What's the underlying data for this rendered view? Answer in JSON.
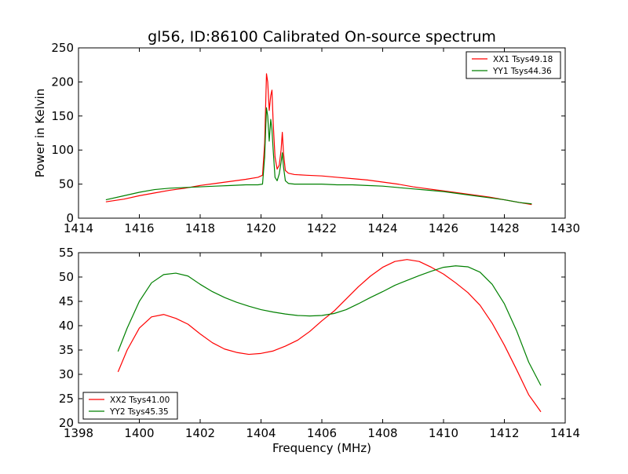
{
  "chart_data": [
    {
      "type": "line",
      "title": "gl56, ID:86100 Calibrated On-source spectrum",
      "xlabel": "",
      "ylabel": "Power in Kelvin",
      "xlim": [
        1414,
        1430
      ],
      "ylim": [
        0,
        250
      ],
      "xticks": [
        "1414",
        "1416",
        "1418",
        "1420",
        "1422",
        "1424",
        "1426",
        "1428",
        "1430"
      ],
      "yticks": [
        "0",
        "50",
        "100",
        "150",
        "200",
        "250"
      ],
      "grid": false,
      "legend_position": "top-right",
      "series": [
        {
          "name": "XX1 Tsys49.18",
          "color": "#ff0000",
          "x": [
            1414.9,
            1415.5,
            1416.0,
            1416.5,
            1417.0,
            1417.5,
            1418.0,
            1418.5,
            1419.0,
            1419.5,
            1419.9,
            1420.05,
            1420.12,
            1420.18,
            1420.22,
            1420.27,
            1420.32,
            1420.36,
            1420.4,
            1420.46,
            1420.53,
            1420.6,
            1420.66,
            1420.7,
            1420.74,
            1420.8,
            1420.9,
            1421.1,
            1421.5,
            1422.0,
            1422.5,
            1423.0,
            1423.5,
            1424.0,
            1424.5,
            1425.0,
            1425.5,
            1426.0,
            1426.5,
            1427.0,
            1427.5,
            1428.0,
            1428.5,
            1428.9
          ],
          "y": [
            24,
            28,
            33,
            37,
            41,
            44,
            48,
            51,
            54,
            57,
            60,
            63,
            110,
            212,
            200,
            158,
            180,
            188,
            140,
            90,
            72,
            78,
            100,
            126,
            95,
            70,
            66,
            64,
            63,
            62,
            60,
            58,
            56,
            53,
            50,
            46,
            43,
            40,
            37,
            34,
            31,
            27,
            23,
            20
          ]
        },
        {
          "name": "YY1 Tsys44.36",
          "color": "#008000",
          "x": [
            1414.9,
            1415.5,
            1416.0,
            1416.5,
            1417.0,
            1417.5,
            1418.0,
            1418.5,
            1419.0,
            1419.5,
            1419.9,
            1420.05,
            1420.12,
            1420.18,
            1420.22,
            1420.27,
            1420.32,
            1420.36,
            1420.4,
            1420.46,
            1420.53,
            1420.6,
            1420.66,
            1420.7,
            1420.74,
            1420.8,
            1420.9,
            1421.1,
            1421.5,
            1422.0,
            1422.5,
            1423.0,
            1423.5,
            1424.0,
            1424.5,
            1425.0,
            1425.5,
            1426.0,
            1426.5,
            1427.0,
            1427.5,
            1428.0,
            1428.5,
            1428.9
          ],
          "y": [
            27,
            33,
            38,
            42,
            44,
            45,
            46,
            47,
            48,
            49,
            49,
            50,
            90,
            162,
            150,
            113,
            145,
            130,
            100,
            60,
            55,
            65,
            82,
            96,
            75,
            55,
            51,
            50,
            50,
            50,
            49,
            49,
            48,
            47,
            45,
            43,
            41,
            39,
            36,
            33,
            30,
            27,
            23,
            21
          ]
        }
      ]
    },
    {
      "type": "line",
      "title": "",
      "xlabel": "Frequency (MHz)",
      "ylabel": "",
      "xlim": [
        1398,
        1414
      ],
      "ylim": [
        20,
        55
      ],
      "xticks": [
        "1398",
        "1400",
        "1402",
        "1404",
        "1406",
        "1408",
        "1410",
        "1412",
        "1414"
      ],
      "yticks": [
        "20",
        "25",
        "30",
        "35",
        "40",
        "45",
        "50",
        "55"
      ],
      "grid": false,
      "legend_position": "bottom-left",
      "series": [
        {
          "name": "XX2 Tsys41.00",
          "color": "#ff0000",
          "x": [
            1399.3,
            1399.6,
            1400.0,
            1400.4,
            1400.8,
            1401.2,
            1401.6,
            1402.0,
            1402.4,
            1402.8,
            1403.2,
            1403.6,
            1404.0,
            1404.4,
            1404.8,
            1405.2,
            1405.6,
            1406.0,
            1406.4,
            1406.8,
            1407.2,
            1407.6,
            1408.0,
            1408.4,
            1408.8,
            1409.2,
            1409.6,
            1410.0,
            1410.4,
            1410.8,
            1411.2,
            1411.6,
            1412.0,
            1412.4,
            1412.8,
            1413.2
          ],
          "y": [
            30.5,
            35,
            39.5,
            41.8,
            42.3,
            41.5,
            40.3,
            38.3,
            36.5,
            35.2,
            34.5,
            34.1,
            34.3,
            34.8,
            35.8,
            37,
            38.8,
            41,
            43,
            45.5,
            48,
            50.2,
            52,
            53.2,
            53.6,
            53.2,
            52,
            50.6,
            48.8,
            46.8,
            44.2,
            40.5,
            36,
            31,
            25.8,
            22.3
          ]
        },
        {
          "name": "YY2 Tsys45.35",
          "color": "#008000",
          "x": [
            1399.3,
            1399.6,
            1400.0,
            1400.4,
            1400.8,
            1401.2,
            1401.6,
            1402.0,
            1402.4,
            1402.8,
            1403.2,
            1403.6,
            1404.0,
            1404.4,
            1404.8,
            1405.2,
            1405.6,
            1406.0,
            1406.4,
            1406.8,
            1407.2,
            1407.6,
            1408.0,
            1408.4,
            1408.8,
            1409.2,
            1409.6,
            1410.0,
            1410.4,
            1410.8,
            1411.2,
            1411.6,
            1412.0,
            1412.4,
            1412.8,
            1413.2
          ],
          "y": [
            34.7,
            39.5,
            45,
            48.8,
            50.5,
            50.8,
            50.2,
            48.5,
            47,
            45.8,
            44.8,
            44,
            43.3,
            42.8,
            42.4,
            42.1,
            42,
            42.1,
            42.5,
            43.3,
            44.5,
            45.8,
            47,
            48.3,
            49.3,
            50.3,
            51.2,
            52,
            52.3,
            52.1,
            51,
            48.5,
            44.5,
            39,
            32.5,
            27.7
          ]
        }
      ]
    }
  ]
}
